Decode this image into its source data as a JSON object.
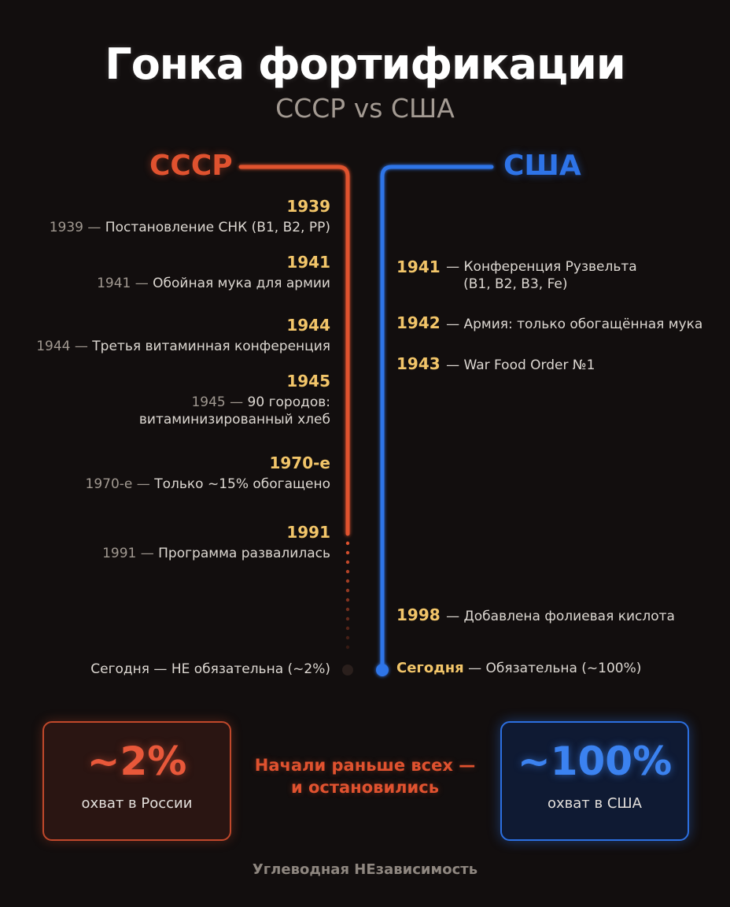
{
  "title": "Гонка фортификации",
  "subtitle": "СССР vs США",
  "colors": {
    "ussr": "#e0522f",
    "usa": "#2e74e8",
    "year": "#f2c569",
    "background": "#120e0e"
  },
  "ussr": {
    "label": "СССР",
    "events": [
      {
        "year": "1939",
        "prefix": "1939 —",
        "text": " Постановление СНК (B1, B2, PP)"
      },
      {
        "year": "1941",
        "prefix": "1941 —",
        "text": " Обойная мука для армии"
      },
      {
        "year": "1944",
        "prefix": "1944 —",
        "text": " Третья витаминная конференция"
      },
      {
        "year": "1945",
        "prefix": "1945 —",
        "text": " 90 городов:",
        "text2": "витаминизированный хлеб"
      },
      {
        "year": "1970-е",
        "prefix": "1970-е —",
        "text": " Только ~15% обогащено"
      },
      {
        "year": "1991",
        "prefix": "1991 —",
        "text": " Программа развалилась"
      }
    ],
    "today": "Сегодня — НЕ обязательна (~2%)"
  },
  "usa": {
    "label": "США",
    "events": [
      {
        "year": "1941",
        "text": " — Конференция Рузвельта",
        "text2": "(B1, B2, B3, Fe)"
      },
      {
        "year": "1942",
        "text": " — Армия: только обогащённая мука"
      },
      {
        "year": "1943",
        "text": " — War Food Order №1"
      },
      {
        "year": "1998",
        "text": " — Добавлена фолиевая кислота"
      }
    ],
    "today_label": "Сегодня",
    "today_text": " — Обязательна (~100%)"
  },
  "stats": {
    "ussr": {
      "value": "~2%",
      "caption": "охват в России"
    },
    "usa": {
      "value": "~100%",
      "caption": "охват в США"
    },
    "message_line1": "Начали раньше всех —",
    "message_line2": "и остановились"
  },
  "footer": "Углеводная НЕзависимость"
}
